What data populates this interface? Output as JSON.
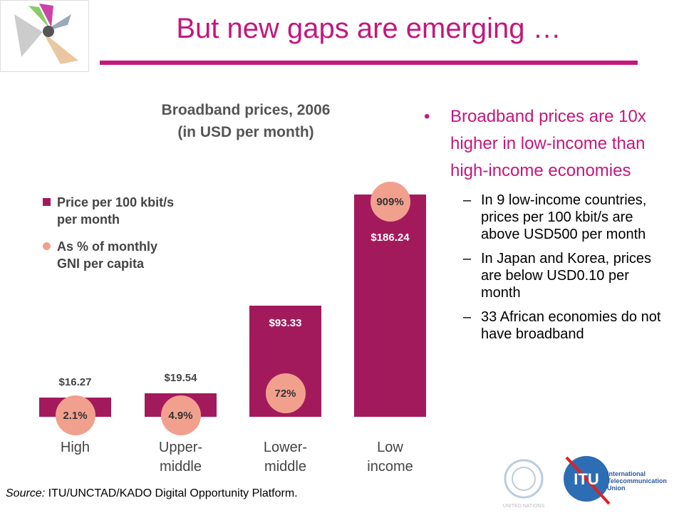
{
  "header": {
    "title": "But new gaps are emerging …"
  },
  "chart_data": {
    "type": "bar",
    "title": "Broadband prices, 2006",
    "subtitle": "(in USD per month)",
    "categories": [
      "High",
      "Upper-\nmiddle",
      "Lower-\nmiddle",
      "Low\nincome"
    ],
    "series": [
      {
        "name": "Price per 100 kbit/s\nper month",
        "color": "#a31a5c",
        "values": [
          16.27,
          19.54,
          93.33,
          186.24
        ],
        "value_labels": [
          "$16.27",
          "$19.54",
          "$93.33",
          "$186.24"
        ]
      },
      {
        "name": "As % of monthly\nGNI per capita",
        "color": "#f2a08e",
        "values": [
          2.1,
          4.9,
          72,
          909
        ],
        "value_labels": [
          "2.1%",
          "4.9%",
          "72%",
          "909%"
        ]
      }
    ]
  },
  "bullets": [
    {
      "text": "Broadband prices are 10x higher in low-income than high-income economies",
      "sub": [
        "In 9 low-income countries, prices per 100 kbit/s are above USD500 per month",
        "In Japan and Korea, prices are below USD0.10 per month",
        "33 African economies do not have broadband"
      ]
    }
  ],
  "source": {
    "label": "Source:",
    "text": "ITU/UNCTAD/KADO Digital Opportunity Platform."
  },
  "logos": {
    "un": "UNITED NATIONS",
    "itu": "ITU",
    "itu_name": "International\nTelecommunication\nUnion"
  }
}
